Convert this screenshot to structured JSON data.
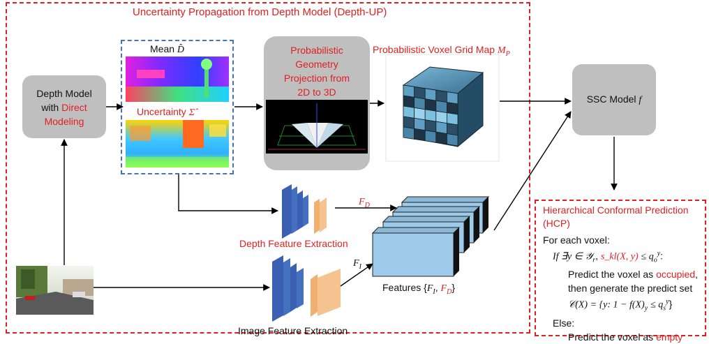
{
  "main_title": "Uncertainty Propagation from Depth Model (Depth-UP)",
  "depth_model": {
    "line1": "Depth Model",
    "line2": "with",
    "line2_red": "Direct",
    "line3_red": "Modeling"
  },
  "mean_label": "Mean",
  "mean_symbol": "D̂",
  "uncertainty_label": "Uncertainty",
  "uncertainty_symbol": "Σ̂",
  "projection": {
    "line1": "Probabilistic",
    "line2": "Geometry",
    "line3": "Projection from",
    "line4": "2D to 3D"
  },
  "voxel_map_label": "Probabilistic Voxel Grid Map",
  "voxel_map_symbol": "M",
  "voxel_map_sub": "P",
  "ssc_label": "SSC Model",
  "ssc_symbol": "f",
  "depth_feature_label": "Depth Feature Extraction",
  "image_feature_label": "Image Feature Extraction",
  "fd_symbol": "F",
  "fd_sub": "D",
  "fi_symbol": "F",
  "fi_sub": "I",
  "features_label": "Features",
  "hcp": {
    "title1": "Hierarchical Conformal Prediction",
    "title2": "(HCP)",
    "line1": "For each voxel:",
    "line2_a": "If ∃y ∈ 𝒴",
    "line2_sub": "r",
    "line2_red": "s_kl(X, y)",
    "line2_b": "≤ q",
    "line2_sub2": "o",
    "line2_sup2": "y",
    "line3_a": "Predict the voxel as",
    "line3_red": "occupied",
    "line4": "then generate the predict set",
    "line5": "𝒞(X) = {y: 1 − f(X)",
    "line5_sub": "y",
    "line5_b": "≤ q",
    "line5_sub2": "s",
    "line5_sup2": "y",
    "line6": "Else:",
    "line7_a": "Predict the voxel as",
    "line7_red": "empty"
  },
  "colors": {
    "red": "#e02020",
    "blue_dash": "#4472c4",
    "gray": "#bfbfbf"
  }
}
